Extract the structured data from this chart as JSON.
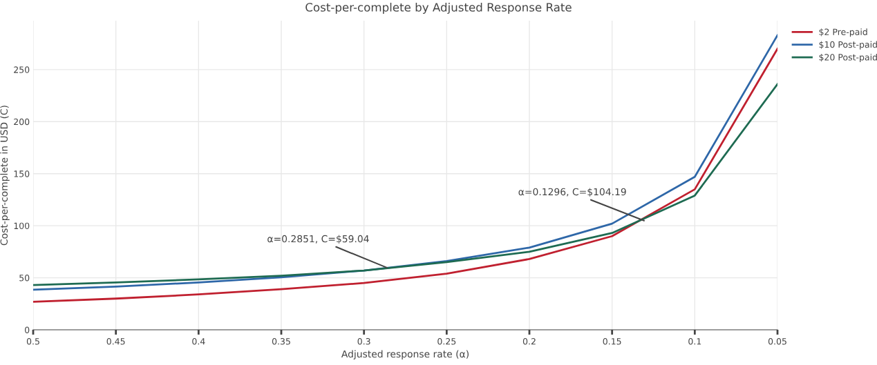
{
  "chart_data": {
    "type": "line",
    "title": "Cost-per-complete by Adjusted Response Rate",
    "xlabel": "Adjusted response rate (α)",
    "ylabel": "Cost-per-complete in USD (C)",
    "x": [
      0.5,
      0.45,
      0.4,
      0.35,
      0.3,
      0.25,
      0.2,
      0.15,
      0.1,
      0.05
    ],
    "series": [
      {
        "name": "$2 Pre-paid",
        "color": "#c0202f",
        "values": [
          27,
          30,
          34,
          39,
          45,
          54,
          68,
          90,
          135,
          270
        ]
      },
      {
        "name": "$10 Post-paid",
        "color": "#2e67a8",
        "values": [
          38.5,
          41.5,
          45.5,
          50.5,
          57,
          66,
          79,
          102,
          147,
          283
        ]
      },
      {
        "name": "$20 Post-paid",
        "color": "#1e6b52",
        "values": [
          43,
          45.5,
          48.5,
          52,
          57,
          65,
          75,
          93,
          129,
          236
        ]
      }
    ],
    "annotations": [
      {
        "text": "α=0.2851, C=$59.04",
        "x": 0.2851,
        "y": 59.04
      },
      {
        "text": "α=0.1296, C=$104.19",
        "x": 0.1296,
        "y": 104.19
      }
    ],
    "xlim": [
      0.5,
      0.05
    ],
    "ylim": [
      0,
      297
    ],
    "xticks": [
      0.5,
      0.45,
      0.4,
      0.35,
      0.3,
      0.25,
      0.2,
      0.15,
      0.1,
      0.05
    ],
    "yticks": [
      0,
      50,
      100,
      150,
      200,
      250
    ],
    "grid": true,
    "legend": "top right",
    "marker": "none",
    "line_style": "solid"
  }
}
